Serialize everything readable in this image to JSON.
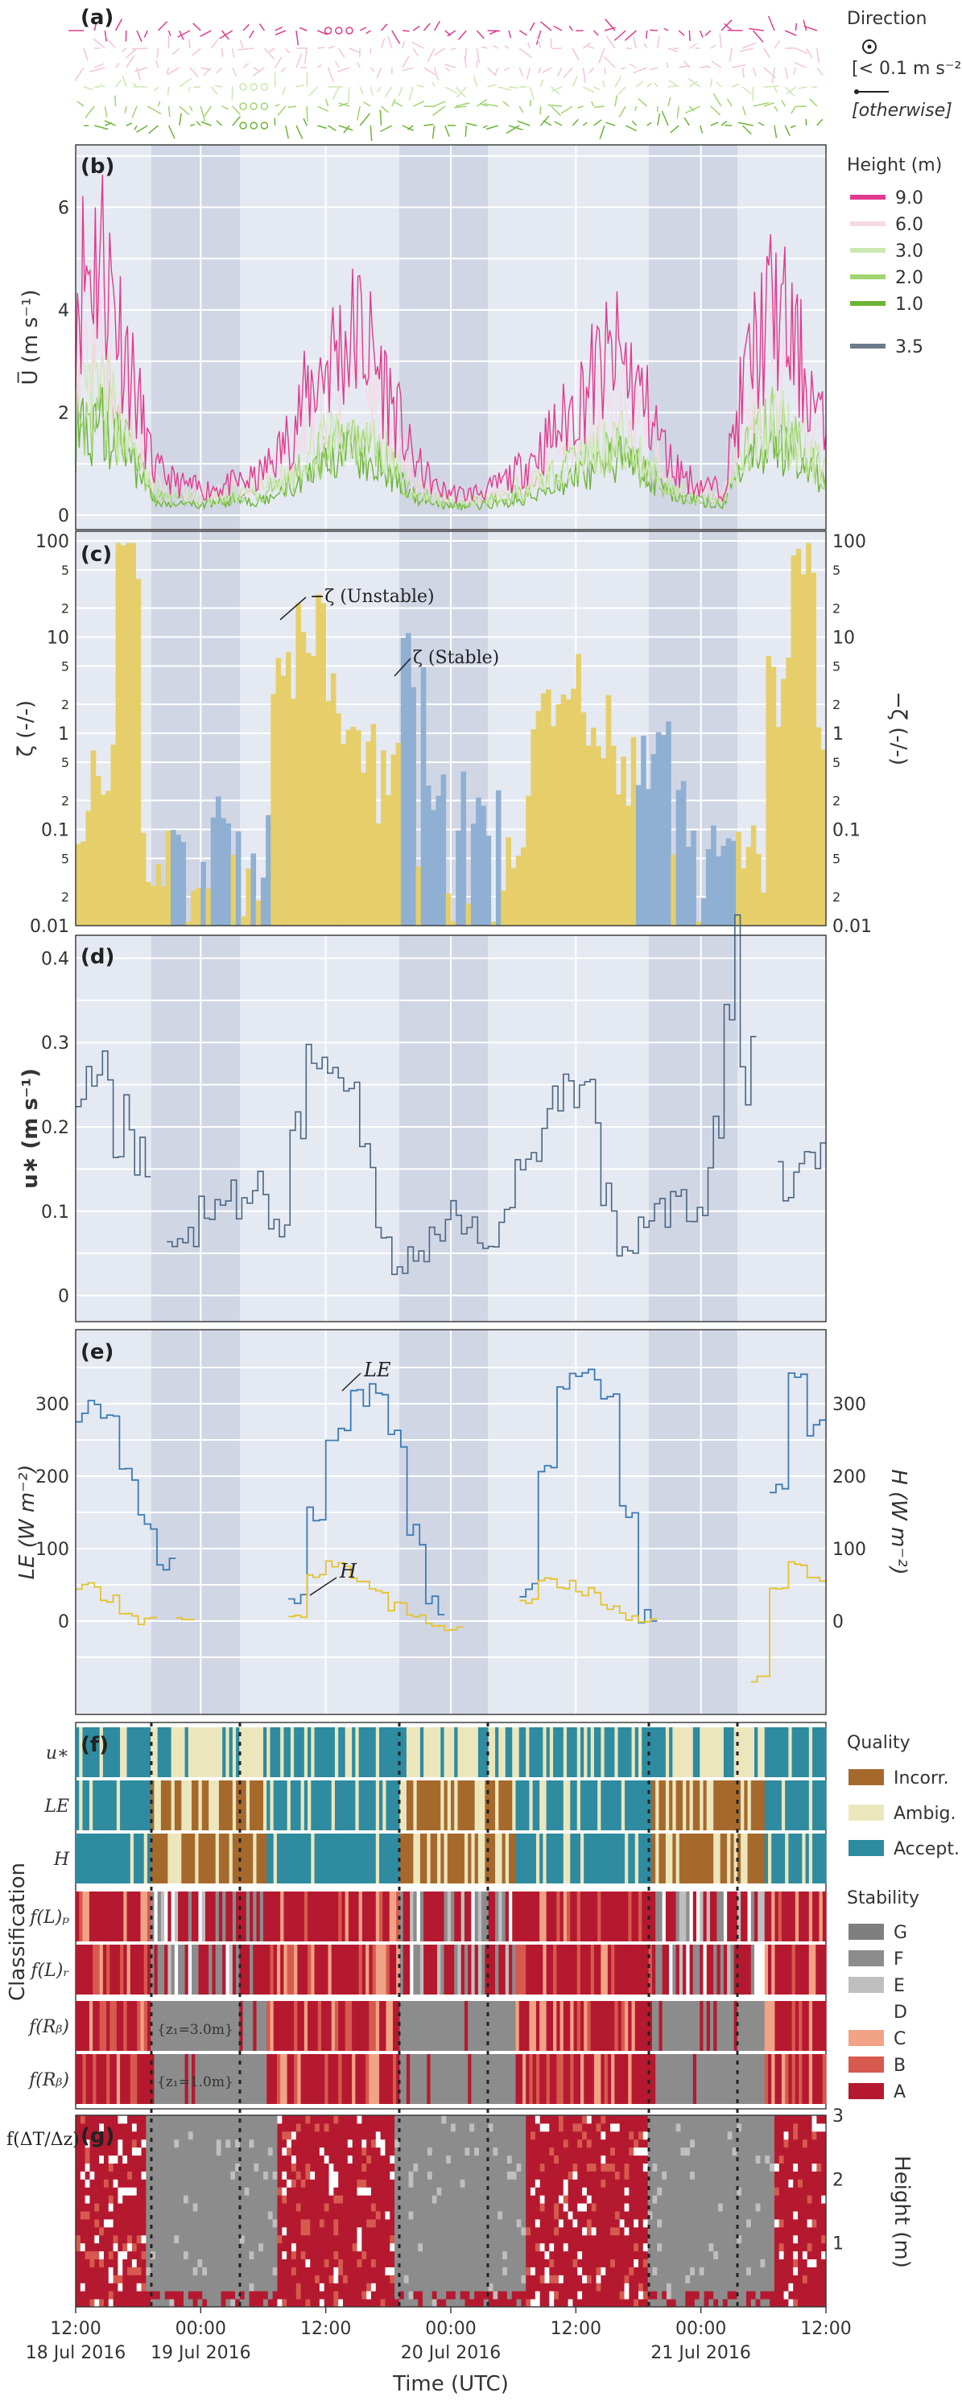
{
  "chart_data": [
    {
      "panel": "(a)",
      "type": "scatter",
      "legend_title": "Direction",
      "legend": [
        "[< 0.1 m s⁻²]",
        "[otherwise]"
      ]
    },
    {
      "panel": "(b)",
      "type": "line",
      "ylabel": "U̅ (m s⁻¹)",
      "ylim": [
        0,
        8
      ],
      "yticks": [
        "0",
        "2",
        "4",
        "6"
      ],
      "legend_title": "Height (m)",
      "series": [
        {
          "name": "9.0",
          "color": "#e23a8e",
          "values": [
            4.5,
            5.2,
            3.1,
            0.9,
            0.6,
            0.5,
            0.6,
            0.7,
            1.3,
            2.4,
            3.2,
            3.6,
            2.5,
            1.1,
            0.5,
            0.4,
            0.5,
            0.8,
            1.3,
            1.9,
            2.7,
            3.1,
            2.2,
            1.0,
            0.6,
            0.5,
            2.9,
            4.1,
            3.0,
            1.5
          ]
        },
        {
          "name": "6.0",
          "color": "#f6d9e6",
          "values": [
            3.2,
            3.8,
            2.4,
            0.7,
            0.5,
            0.4,
            0.5,
            0.6,
            1.0,
            1.8,
            2.4,
            2.7,
            1.9,
            0.8,
            0.4,
            0.3,
            0.4,
            0.6,
            1.0,
            1.5,
            2.1,
            2.4,
            1.7,
            0.8,
            0.5,
            0.4,
            2.2,
            3.1,
            2.3,
            1.1
          ]
        },
        {
          "name": "3.0",
          "color": "#cce8b0",
          "values": [
            2.1,
            2.4,
            1.6,
            0.5,
            0.4,
            0.3,
            0.4,
            0.5,
            0.7,
            1.2,
            1.5,
            1.7,
            1.2,
            0.6,
            0.3,
            0.3,
            0.3,
            0.5,
            0.7,
            1.0,
            1.3,
            1.5,
            1.1,
            0.6,
            0.4,
            0.3,
            1.5,
            2.0,
            1.5,
            0.8
          ]
        },
        {
          "name": "2.0",
          "color": "#9fd46e",
          "values": [
            1.8,
            2.1,
            1.4,
            0.4,
            0.3,
            0.3,
            0.3,
            0.4,
            0.6,
            1.0,
            1.3,
            1.5,
            1.0,
            0.5,
            0.3,
            0.2,
            0.3,
            0.4,
            0.6,
            0.9,
            1.1,
            1.3,
            0.9,
            0.5,
            0.3,
            0.3,
            1.3,
            1.8,
            1.3,
            0.7
          ]
        },
        {
          "name": "1.0",
          "color": "#6bb436",
          "values": [
            1.5,
            1.8,
            1.2,
            0.3,
            0.2,
            0.2,
            0.3,
            0.3,
            0.5,
            0.8,
            1.1,
            1.2,
            0.9,
            0.4,
            0.2,
            0.2,
            0.2,
            0.3,
            0.5,
            0.7,
            0.9,
            1.1,
            0.8,
            0.4,
            0.3,
            0.2,
            1.1,
            1.5,
            1.1,
            0.6
          ]
        },
        {
          "name": "3.5",
          "color": "#6c7a8c",
          "values": []
        }
      ]
    },
    {
      "panel": "(c)",
      "type": "bar",
      "ylabel": "ζ (-/-)",
      "ylabel_right": "−ζ (-/-)",
      "yscale": "log",
      "ylim": [
        0.01,
        100
      ],
      "yticks": [
        "0.01",
        "0.1",
        "1",
        "10",
        "100"
      ],
      "yminor": [
        "2",
        "5",
        "2",
        "5",
        "2",
        "5",
        "2",
        "5"
      ],
      "annotations": [
        "−ζ  (Unstable)",
        "ζ  (Stable)"
      ],
      "series": [
        {
          "name": "Unstable",
          "color": "#e6cf6a",
          "values": [
            0.2,
            0.6,
            90,
            0.05,
            0.02,
            0.01,
            0.02,
            0.03,
            3.2,
            15,
            2.1,
            0.8,
            0.3,
            0.1,
            0.02,
            0.01,
            0.02,
            0.08,
            1.2,
            2.5,
            0.9,
            0.4,
            0.1,
            0.03,
            0.02,
            0.01,
            0.05,
            2.4,
            60,
            1.1
          ]
        },
        {
          "name": "Stable",
          "color": "#8fb0d3",
          "values": [
            0.01,
            0.01,
            0.01,
            0.05,
            0.08,
            0.12,
            0.09,
            0.06,
            0.01,
            0.01,
            0.01,
            0.01,
            0.2,
            4.0,
            0.3,
            0.15,
            0.2,
            0.01,
            0.01,
            0.01,
            0.01,
            0.01,
            0.4,
            0.7,
            0.05,
            0.04,
            0.01,
            0.01,
            0.01,
            0.01
          ]
        }
      ]
    },
    {
      "panel": "(d)",
      "type": "line",
      "ylabel": "u∗ (m s⁻¹)",
      "ylim": [
        -0.01,
        0.41
      ],
      "yticks": [
        "0",
        "0.1",
        "0.2",
        "0.3",
        "0.4"
      ],
      "series": [
        {
          "name": "u*",
          "color": "#4a6682",
          "values": [
            0.28,
            0.26,
            0.2,
            0.17,
            null,
            0.06,
            0.07,
            0.1,
            0.12,
            0.1,
            0.14,
            0.08,
            0.2,
            0.28,
            0.3,
            0.25,
            0.16,
            0.08,
            0.03,
            0.05,
            0.07,
            0.1,
            0.08,
            0.06,
            0.1,
            0.14,
            0.17,
            0.22,
            0.25,
            0.22,
            0.12,
            0.05,
            0.08,
            0.1,
            0.12,
            0.1,
            0.18,
            0.4,
            0.27,
            null,
            0.14,
            0.15,
            0.17
          ]
        }
      ]
    },
    {
      "panel": "(e)",
      "type": "line",
      "ylabel": "LE (W m⁻²)",
      "ylabel_right": "H (W m⁻²)",
      "ylim": [
        -110,
        390
      ],
      "yticks": [
        "0",
        "100",
        "200",
        "300"
      ],
      "annotations": [
        "LE",
        "H"
      ],
      "series": [
        {
          "name": "LE",
          "color": "#3a7bb5",
          "values": [
            290,
            270,
            200,
            140,
            80,
            null,
            null,
            null,
            null,
            null,
            null,
            30,
            150,
            260,
            310,
            320,
            250,
            120,
            20,
            null,
            null,
            null,
            null,
            40,
            200,
            330,
            340,
            300,
            150,
            10,
            null,
            null,
            null,
            null,
            null,
            null,
            190,
            330,
            270
          ]
        },
        {
          "name": "H",
          "color": "#e5c22a",
          "values": [
            50,
            30,
            10,
            0,
            null,
            5,
            null,
            null,
            null,
            null,
            null,
            10,
            60,
            80,
            55,
            45,
            20,
            5,
            -5,
            -10,
            null,
            null,
            null,
            30,
            60,
            50,
            40,
            20,
            5,
            0,
            null,
            null,
            null,
            null,
            null,
            -80,
            50,
            80,
            60
          ]
        }
      ]
    },
    {
      "panel": "(f)",
      "type": "heatmap",
      "ylabel": "Classification",
      "rows": [
        "u∗",
        "LE",
        "H",
        "f(L)P",
        "f(L)R",
        "f(Rb)",
        "f(Rb)"
      ],
      "row_notes": [
        "",
        "",
        "",
        "",
        "",
        "{z1=3.0m}",
        "{z1=1.0m}"
      ],
      "legend_quality_title": "Quality",
      "legend_quality": [
        {
          "name": "Incorr.",
          "color": "#a6692c"
        },
        {
          "name": "Ambig.",
          "color": "#ece6bd"
        },
        {
          "name": "Accept.",
          "color": "#2e8ba0"
        }
      ],
      "legend_stability_title": "Stability",
      "legend_stability": [
        {
          "name": "G",
          "color": "#7f7f7f"
        },
        {
          "name": "F",
          "color": "#8c8c8c"
        },
        {
          "name": "E",
          "color": "#bfbfbf"
        },
        {
          "name": "D",
          "color": "#ffffff"
        },
        {
          "name": "C",
          "color": "#f2a285"
        },
        {
          "name": "B",
          "color": "#d65a4e"
        },
        {
          "name": "A",
          "color": "#b5192f"
        }
      ]
    },
    {
      "panel": "(g)",
      "type": "heatmap",
      "ylabel": "f(ΔT/Δz)",
      "ylabel_right": "Height (m)",
      "ylim": [
        0,
        3
      ],
      "yticks": [
        "1",
        "2",
        "3"
      ]
    }
  ],
  "xaxis": {
    "label": "Time (UTC)",
    "ticks": [
      {
        "time": "12:00",
        "date": "18 Jul 2016"
      },
      {
        "time": "00:00",
        "date": "19 Jul 2016"
      },
      {
        "time": "12:00",
        "date": ""
      },
      {
        "time": "00:00",
        "date": "20 Jul 2016"
      },
      {
        "time": "12:00",
        "date": ""
      },
      {
        "time": "00:00",
        "date": "21 Jul 2016"
      },
      {
        "time": "12:00",
        "date": ""
      }
    ]
  },
  "labels": {
    "a": "(a)",
    "b": "(b)",
    "c": "(c)",
    "d": "(d)",
    "e": "(e)",
    "f": "(f)",
    "g": "(g)",
    "dir_title": "Direction",
    "dir_calm": "[< 0.1 m s⁻²]",
    "dir_other": "[otherwise]",
    "height_title": "Height (m)",
    "b_ylabel": "U̅  (m s⁻¹)",
    "c_ylabel": "ζ  (-/-)",
    "c_ylabel_r": "−ζ  (-/-)",
    "c_ann_unstable": "−ζ  (Unstable)",
    "c_ann_stable": "ζ  (Stable)",
    "d_ylabel": "u∗  (m s⁻¹)",
    "e_ylabel": "LE  (W m⁻²)",
    "e_ylabel_r": "H  (W m⁻²)",
    "e_ann_le": "LE",
    "e_ann_h": "H",
    "f_ylabel": "Classification",
    "f_note1": "{z₁=3.0m}",
    "f_note2": "{z₁=1.0m}",
    "g_ylabel": "f(ΔT/Δz)",
    "g_ylabel_r": "Height  (m)",
    "quality_title": "Quality",
    "stability_title": "Stability",
    "xlabel": "Time (UTC)"
  }
}
